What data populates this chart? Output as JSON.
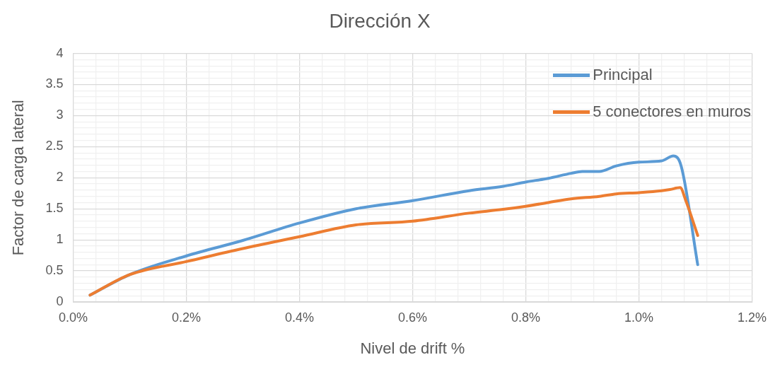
{
  "chart_data": {
    "type": "line",
    "title": "Dirección X",
    "xlabel": "Nivel de drift %",
    "ylabel": "Factor de carga lateral",
    "xlim": [
      0,
      1.2
    ],
    "xticks": [
      {
        "value": 0,
        "label": "0.0%"
      },
      {
        "value": 0.2,
        "label": "0.2%"
      },
      {
        "value": 0.4,
        "label": "0.4%"
      },
      {
        "value": 0.6,
        "label": "0.6%"
      },
      {
        "value": 0.8,
        "label": "0.8%"
      },
      {
        "value": 1.0,
        "label": "1.0%"
      },
      {
        "value": 1.2,
        "label": "1.2%"
      }
    ],
    "ylim": [
      0,
      4
    ],
    "yticks": [
      0,
      0.5,
      1,
      1.5,
      2,
      2.5,
      3,
      3.5,
      4
    ],
    "grid": true,
    "legend": "top right",
    "marker": "none",
    "line_style": "solid",
    "series": [
      {
        "name": "Principal",
        "color": "#5b9bd5",
        "x": [
          0.03,
          0.1,
          0.2,
          0.3,
          0.4,
          0.5,
          0.6,
          0.7,
          0.76,
          0.8,
          0.84,
          0.88,
          0.9,
          0.93,
          0.96,
          1.0,
          1.04,
          1.061,
          1.075,
          1.104
        ],
        "values": [
          0.11,
          0.44,
          0.74,
          0.99,
          1.27,
          1.5,
          1.63,
          1.79,
          1.86,
          1.93,
          1.99,
          2.07,
          2.1,
          2.1,
          2.19,
          2.25,
          2.27,
          2.35,
          2.18,
          0.6
        ]
      },
      {
        "name": "5 conectores en muros",
        "color": "#ed7d31",
        "x": [
          0.03,
          0.1,
          0.2,
          0.3,
          0.4,
          0.5,
          0.6,
          0.7,
          0.76,
          0.8,
          0.84,
          0.88,
          0.93,
          0.96,
          1.0,
          1.04,
          1.055,
          1.073,
          1.083,
          1.104
        ],
        "values": [
          0.11,
          0.44,
          0.65,
          0.86,
          1.05,
          1.24,
          1.3,
          1.43,
          1.49,
          1.54,
          1.6,
          1.66,
          1.7,
          1.74,
          1.76,
          1.79,
          1.81,
          1.84,
          1.63,
          1.07
        ]
      }
    ]
  }
}
